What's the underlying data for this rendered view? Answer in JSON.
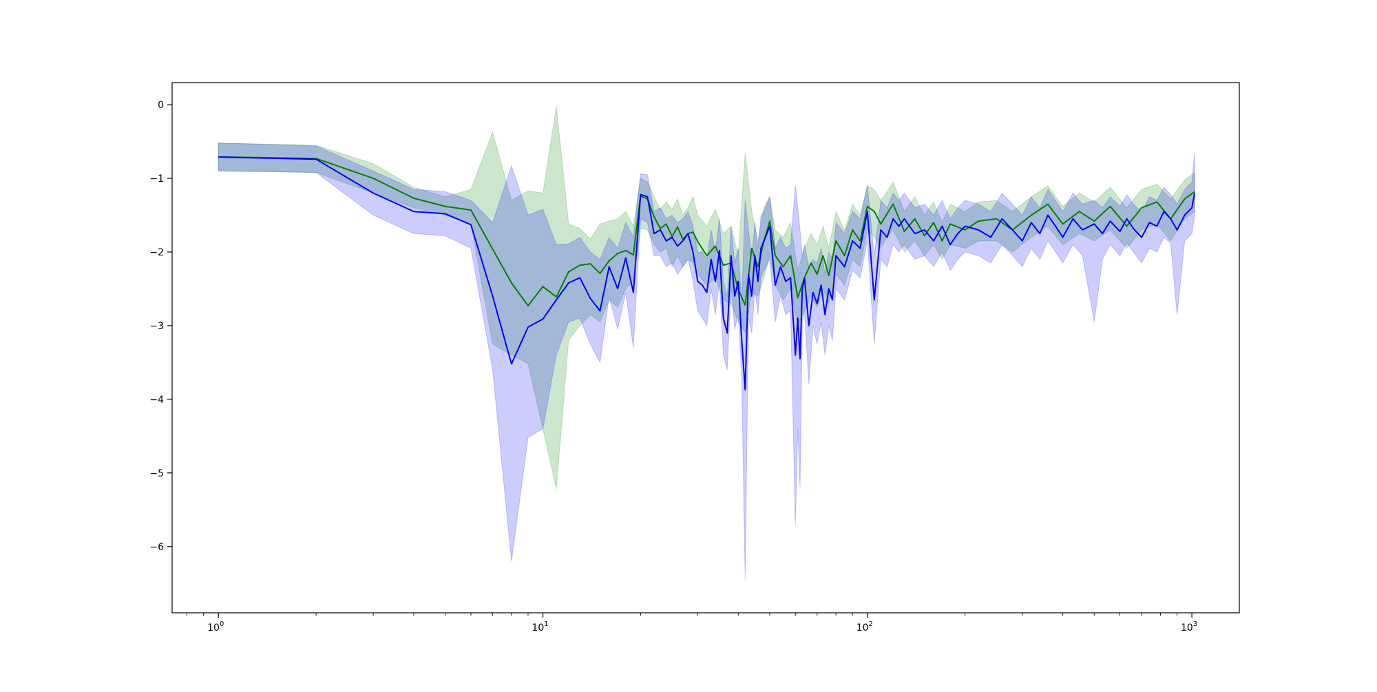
{
  "chart_data": {
    "type": "line",
    "title": "",
    "xlabel": "",
    "ylabel": "",
    "x_scale": "log",
    "xlim": [
      0.72,
      1400
    ],
    "ylim": [
      -6.9,
      0.3
    ],
    "x_ticks": [
      {
        "value": 1,
        "base": "10",
        "exp": "0"
      },
      {
        "value": 10,
        "base": "10",
        "exp": "1"
      },
      {
        "value": 100,
        "base": "10",
        "exp": "2"
      },
      {
        "value": 1000,
        "base": "10",
        "exp": "3"
      }
    ],
    "y_ticks": [
      {
        "value": 0,
        "label": "0"
      },
      {
        "value": -1,
        "label": "−1"
      },
      {
        "value": -2,
        "label": "−2"
      },
      {
        "value": -3,
        "label": "−3"
      },
      {
        "value": -4,
        "label": "−4"
      },
      {
        "value": -5,
        "label": "−5"
      },
      {
        "value": -6,
        "label": "−6"
      }
    ],
    "grid": false,
    "legend": "none",
    "series": [
      {
        "color": "#008000",
        "band_color": "#008000",
        "band_opacity": 0.2,
        "x": [
          1,
          2,
          3,
          4,
          5,
          6,
          7,
          8,
          9,
          10,
          11,
          12,
          13,
          14,
          15,
          16,
          17,
          18,
          19,
          20,
          21,
          22,
          23,
          24,
          25,
          26,
          27,
          28,
          29,
          30,
          32,
          34,
          36,
          38,
          40,
          42,
          44,
          46,
          48,
          50,
          52,
          55,
          58,
          61,
          64,
          67,
          70,
          73,
          76,
          80,
          85,
          90,
          95,
          100,
          105,
          110,
          115,
          120,
          130,
          140,
          150,
          160,
          170,
          180,
          200,
          220,
          250,
          280,
          320,
          360,
          400,
          450,
          500,
          560,
          630,
          700,
          780,
          860,
          950,
          1020
        ],
        "y": [
          -0.71,
          -0.73,
          -1.0,
          -1.27,
          -1.38,
          -1.43,
          -1.96,
          -2.42,
          -2.73,
          -2.47,
          -2.61,
          -2.27,
          -2.18,
          -2.16,
          -2.29,
          -2.12,
          -2.02,
          -1.98,
          -2.04,
          -1.24,
          -1.28,
          -1.52,
          -1.68,
          -1.62,
          -1.79,
          -1.66,
          -1.83,
          -1.75,
          -1.73,
          -1.86,
          -2.05,
          -1.92,
          -2.18,
          -2.15,
          -2.51,
          -2.72,
          -1.95,
          -2.2,
          -1.85,
          -1.58,
          -2.05,
          -2.2,
          -2.05,
          -2.62,
          -2.35,
          -2.15,
          -2.3,
          -2.05,
          -2.32,
          -1.85,
          -2.05,
          -1.7,
          -1.85,
          -1.38,
          -1.45,
          -1.62,
          -1.48,
          -1.35,
          -1.72,
          -1.55,
          -1.78,
          -1.6,
          -1.85,
          -1.62,
          -1.7,
          -1.58,
          -1.55,
          -1.7,
          -1.5,
          -1.35,
          -1.62,
          -1.45,
          -1.58,
          -1.38,
          -1.65,
          -1.4,
          -1.32,
          -1.55,
          -1.28,
          -1.18
        ],
        "lower": [
          -0.9,
          -0.92,
          -1.2,
          -1.4,
          -1.5,
          -1.62,
          -3.25,
          -3.4,
          -3.52,
          -4.4,
          -5.22,
          -3.2,
          -3.0,
          -2.85,
          -2.95,
          -2.65,
          -2.75,
          -2.5,
          -2.4,
          -1.68,
          -1.7,
          -1.9,
          -2.0,
          -1.95,
          -2.2,
          -2.05,
          -2.2,
          -2.1,
          -2.15,
          -2.3,
          -2.45,
          -2.35,
          -2.65,
          -2.7,
          -2.95,
          -3.1,
          -2.55,
          -2.6,
          -2.35,
          -2.05,
          -2.45,
          -2.65,
          -2.5,
          -3.0,
          -2.8,
          -2.6,
          -2.75,
          -2.5,
          -2.7,
          -2.3,
          -2.45,
          -2.1,
          -2.2,
          -1.7,
          -1.8,
          -1.95,
          -1.8,
          -1.7,
          -2.0,
          -1.85,
          -2.05,
          -1.9,
          -2.1,
          -1.9,
          -1.95,
          -1.85,
          -1.85,
          -2.0,
          -1.8,
          -1.65,
          -1.9,
          -1.75,
          -1.85,
          -1.7,
          -1.95,
          -1.7,
          -1.62,
          -1.85,
          -1.55,
          -1.45
        ],
        "upper": [
          -0.52,
          -0.55,
          -0.8,
          -1.12,
          -1.25,
          -1.15,
          -0.37,
          -1.3,
          -1.17,
          -1.2,
          -0.02,
          -1.62,
          -1.68,
          -1.82,
          -1.62,
          -1.58,
          -1.55,
          -1.45,
          -1.65,
          -1.0,
          -1.05,
          -1.25,
          -1.42,
          -1.32,
          -1.42,
          -1.28,
          -1.5,
          -1.4,
          -1.25,
          -1.5,
          -1.65,
          -1.42,
          -1.75,
          -1.65,
          -2.05,
          -0.65,
          -1.45,
          -1.85,
          -1.4,
          -1.25,
          -1.7,
          -1.8,
          -1.6,
          -2.25,
          -1.95,
          -1.75,
          -1.9,
          -1.65,
          -1.95,
          -1.45,
          -1.7,
          -1.35,
          -1.5,
          -1.1,
          -1.15,
          -1.3,
          -1.18,
          -1.05,
          -1.45,
          -1.25,
          -1.5,
          -1.32,
          -1.6,
          -1.35,
          -1.45,
          -1.32,
          -1.3,
          -1.45,
          -1.25,
          -1.1,
          -1.38,
          -1.2,
          -1.32,
          -1.12,
          -1.4,
          -1.15,
          -1.08,
          -1.28,
          -1.02,
          -0.92
        ]
      },
      {
        "color": "#0000ff",
        "band_color": "#0000ff",
        "band_opacity": 0.2,
        "x": [
          1,
          2,
          3,
          4,
          5,
          6,
          7,
          8,
          9,
          10,
          11,
          12,
          13,
          14,
          15,
          16,
          17,
          18,
          19,
          20,
          21,
          22,
          23,
          24,
          25,
          26,
          27,
          28,
          29,
          30,
          31,
          32,
          33,
          34,
          35,
          36,
          37,
          38,
          39,
          40,
          41,
          42,
          43,
          44,
          45,
          46,
          47,
          48,
          50,
          52,
          54,
          56,
          58,
          60,
          61,
          62,
          63,
          64,
          66,
          68,
          70,
          72,
          74,
          76,
          78,
          80,
          85,
          90,
          95,
          100,
          105,
          110,
          115,
          120,
          125,
          130,
          140,
          150,
          160,
          170,
          180,
          190,
          200,
          220,
          240,
          260,
          280,
          300,
          320,
          340,
          360,
          380,
          400,
          430,
          460,
          500,
          530,
          560,
          600,
          630,
          660,
          700,
          740,
          780,
          820,
          860,
          900,
          950,
          1000,
          1020
        ],
        "y": [
          -0.71,
          -0.74,
          -1.2,
          -1.45,
          -1.48,
          -1.63,
          -2.6,
          -3.52,
          -3.02,
          -2.91,
          -2.65,
          -2.42,
          -2.35,
          -2.63,
          -2.8,
          -2.2,
          -2.5,
          -2.08,
          -2.55,
          -1.22,
          -1.25,
          -1.75,
          -1.7,
          -1.85,
          -1.8,
          -1.92,
          -1.85,
          -1.75,
          -2.0,
          -2.4,
          -2.45,
          -2.55,
          -2.1,
          -2.4,
          -1.98,
          -2.9,
          -3.1,
          -2.05,
          -2.6,
          -2.4,
          -3.2,
          -3.87,
          -2.3,
          -2.6,
          -2.05,
          -2.4,
          -1.95,
          -1.85,
          -1.65,
          -2.45,
          -2.2,
          -2.4,
          -2.35,
          -3.4,
          -2.9,
          -3.45,
          -2.5,
          -2.35,
          -3.0,
          -2.55,
          -2.7,
          -2.45,
          -2.85,
          -2.5,
          -2.65,
          -2.05,
          -2.2,
          -1.85,
          -1.95,
          -1.45,
          -2.65,
          -1.7,
          -1.8,
          -1.55,
          -1.65,
          -1.55,
          -1.75,
          -1.7,
          -1.85,
          -1.65,
          -1.9,
          -1.75,
          -1.65,
          -1.7,
          -1.8,
          -1.55,
          -1.7,
          -1.85,
          -1.6,
          -1.75,
          -1.5,
          -1.65,
          -1.8,
          -1.55,
          -1.7,
          -1.62,
          -1.75,
          -1.58,
          -1.72,
          -1.55,
          -1.68,
          -1.8,
          -1.6,
          -1.65,
          -1.45,
          -1.55,
          -1.7,
          -1.5,
          -1.4,
          -1.2
        ],
        "lower": [
          -0.9,
          -0.92,
          -1.5,
          -1.75,
          -1.78,
          -1.95,
          -3.6,
          -6.2,
          -4.52,
          -4.4,
          -3.4,
          -2.95,
          -2.9,
          -3.25,
          -3.5,
          -2.6,
          -3.05,
          -2.55,
          -3.3,
          -1.55,
          -1.6,
          -2.05,
          -2.05,
          -2.2,
          -2.15,
          -2.3,
          -2.2,
          -2.1,
          -2.4,
          -2.8,
          -2.9,
          -3.0,
          -2.5,
          -2.85,
          -2.4,
          -3.4,
          -3.6,
          -2.45,
          -3.05,
          -2.85,
          -3.7,
          -6.45,
          -2.9,
          -3.1,
          -2.5,
          -2.85,
          -2.35,
          -2.25,
          -2.1,
          -2.95,
          -2.6,
          -2.85,
          -2.8,
          -5.7,
          -4.4,
          -5.2,
          -2.95,
          -2.8,
          -3.8,
          -3.0,
          -3.25,
          -2.95,
          -3.4,
          -3.0,
          -3.2,
          -2.5,
          -2.65,
          -2.25,
          -2.35,
          -1.85,
          -3.25,
          -2.1,
          -2.2,
          -1.9,
          -2.0,
          -1.9,
          -2.1,
          -2.05,
          -2.2,
          -2.0,
          -2.25,
          -2.1,
          -2.0,
          -2.05,
          -2.15,
          -1.9,
          -2.05,
          -2.2,
          -1.95,
          -2.1,
          -1.85,
          -2.0,
          -2.15,
          -1.9,
          -2.05,
          -2.95,
          -2.1,
          -1.9,
          -2.05,
          -1.88,
          -2.0,
          -2.15,
          -1.95,
          -2.0,
          -1.8,
          -1.88,
          -2.85,
          -1.85,
          -1.75,
          -1.5
        ],
        "upper": [
          -0.52,
          -0.56,
          -0.9,
          -1.15,
          -1.18,
          -1.3,
          -1.6,
          -0.83,
          -1.5,
          -1.42,
          -1.9,
          -1.89,
          -1.8,
          -2.0,
          -2.1,
          -1.8,
          -1.95,
          -1.6,
          -1.8,
          -0.94,
          -0.95,
          -1.45,
          -1.4,
          -1.55,
          -1.5,
          -1.6,
          -1.55,
          -1.45,
          -1.65,
          -2.0,
          -2.0,
          -2.1,
          -1.7,
          -2.0,
          -1.55,
          -2.4,
          -2.6,
          -1.65,
          -2.15,
          -1.95,
          -2.7,
          -1.3,
          -1.7,
          -2.1,
          -1.6,
          -1.95,
          -1.5,
          -1.45,
          -1.25,
          -1.95,
          -1.8,
          -1.95,
          -1.9,
          -1.1,
          -1.4,
          -1.7,
          -2.05,
          -1.9,
          -2.2,
          -2.1,
          -2.15,
          -1.95,
          -2.3,
          -2.0,
          -2.1,
          -1.6,
          -1.75,
          -1.45,
          -1.55,
          -1.1,
          -2.05,
          -1.3,
          -1.4,
          -1.2,
          -1.3,
          -1.2,
          -1.4,
          -1.35,
          -1.5,
          -1.3,
          -1.55,
          -1.4,
          -1.3,
          -1.35,
          -1.45,
          -1.2,
          -1.35,
          -1.5,
          -1.25,
          -1.4,
          -1.15,
          -1.3,
          -1.45,
          -1.2,
          -1.35,
          -1.3,
          -1.4,
          -1.25,
          -1.38,
          -1.22,
          -1.35,
          -1.45,
          -1.25,
          -1.3,
          -1.12,
          -1.22,
          -1.35,
          -1.15,
          -1.05,
          -0.65
        ]
      }
    ]
  }
}
